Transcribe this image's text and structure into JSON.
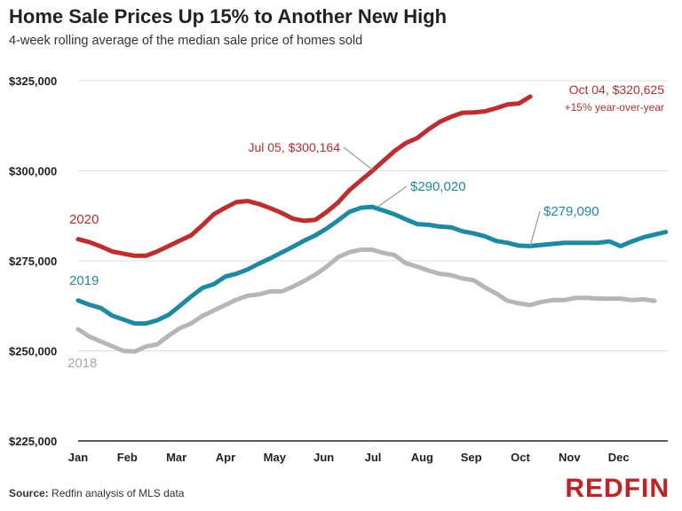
{
  "header": {
    "title": "Home Sale Prices Up 15% to Another New High",
    "subtitle": "4-week rolling average of the median sale price of homes sold"
  },
  "footer": {
    "source_label": "Source:",
    "source_text": "Redfin analysis of MLS data",
    "logo": "REDFIN"
  },
  "chart_data": {
    "type": "line",
    "title": "Home Sale Prices Up 15% to Another New High",
    "subtitle": "4-week rolling average of the median sale price of homes sold",
    "xlabel": "",
    "ylabel": "",
    "ylim": [
      225000,
      325000
    ],
    "xlim": [
      0,
      12
    ],
    "y_ticks": [
      225000,
      250000,
      275000,
      300000,
      325000
    ],
    "y_tick_labels": [
      "$225,000",
      "$250,000",
      "$275,000",
      "$300,000",
      "$325,000"
    ],
    "x_tick_labels": [
      "Jan",
      "Feb",
      "Mar",
      "Apr",
      "May",
      "Jun",
      "Jul",
      "Aug",
      "Sep",
      "Oct",
      "Nov",
      "Dec"
    ],
    "grid": true,
    "colors": {
      "2020": "#c42b2b",
      "2019": "#1a8aa5",
      "2018": "#b6b6b6",
      "grid": "#dddddd",
      "axis": "#222222",
      "callout": "#999999"
    },
    "series": [
      {
        "name": "2018",
        "color": "#b6b6b6",
        "x": [
          0.0,
          0.23,
          0.46,
          0.69,
          0.92,
          1.15,
          1.38,
          1.61,
          1.84,
          2.07,
          2.3,
          2.53,
          2.76,
          2.99,
          3.22,
          3.45,
          3.68,
          3.91,
          4.14,
          4.37,
          4.6,
          4.83,
          5.06,
          5.29,
          5.52,
          5.75,
          5.98,
          6.21,
          6.44,
          6.67,
          6.9,
          7.13,
          7.36,
          7.59,
          7.82,
          8.05,
          8.28,
          8.51,
          8.74,
          8.97,
          9.2,
          9.43,
          9.66,
          9.89,
          10.12,
          10.35,
          10.58,
          10.81,
          11.04,
          11.27,
          11.5,
          11.73
        ],
        "values": [
          256000,
          254000,
          252600,
          251300,
          250000,
          249800,
          251200,
          251800,
          254200,
          256300,
          257600,
          259700,
          261200,
          262700,
          264200,
          265300,
          265700,
          266500,
          266500,
          267800,
          269400,
          271200,
          273400,
          276000,
          277400,
          278100,
          278100,
          277200,
          276600,
          274300,
          273400,
          272300,
          271400,
          271000,
          270100,
          269600,
          267600,
          265900,
          263900,
          263200,
          262700,
          263600,
          264100,
          264100,
          264700,
          264700,
          264500,
          264500,
          264500,
          264100,
          264300,
          263900
        ]
      },
      {
        "name": "2019",
        "color": "#1a8aa5",
        "x": [
          0.0,
          0.23,
          0.46,
          0.69,
          0.92,
          1.15,
          1.38,
          1.61,
          1.84,
          2.07,
          2.3,
          2.53,
          2.76,
          2.99,
          3.22,
          3.45,
          3.68,
          3.91,
          4.14,
          4.37,
          4.6,
          4.83,
          5.06,
          5.29,
          5.52,
          5.75,
          5.98,
          6.21,
          6.44,
          6.67,
          6.9,
          7.13,
          7.36,
          7.59,
          7.82,
          8.05,
          8.28,
          8.51,
          8.74,
          8.97,
          9.2,
          9.43,
          9.66,
          9.89,
          10.12,
          10.35,
          10.58,
          10.81,
          11.04,
          11.27,
          11.5,
          11.73,
          11.96
        ],
        "values": [
          264000,
          262800,
          261900,
          259800,
          258700,
          257600,
          257600,
          258500,
          260000,
          262500,
          265100,
          267500,
          268500,
          270600,
          271400,
          272600,
          274200,
          275700,
          277300,
          278900,
          280600,
          282100,
          284000,
          286200,
          288600,
          289700,
          290000,
          289000,
          287900,
          286500,
          285200,
          285000,
          284500,
          284300,
          283200,
          282600,
          281800,
          280500,
          280000,
          279200,
          279100,
          279400,
          279700,
          280000,
          280000,
          280000,
          280000,
          280400,
          279100,
          280400,
          281500,
          282300,
          283000
        ]
      },
      {
        "name": "2020",
        "color": "#c42b2b",
        "x": [
          0.0,
          0.23,
          0.46,
          0.69,
          0.92,
          1.15,
          1.38,
          1.61,
          1.84,
          2.07,
          2.3,
          2.53,
          2.76,
          2.99,
          3.22,
          3.45,
          3.68,
          3.91,
          4.14,
          4.37,
          4.6,
          4.83,
          5.06,
          5.29,
          5.52,
          5.75,
          5.98,
          6.21,
          6.44,
          6.67,
          6.9,
          7.13,
          7.36,
          7.59,
          7.82,
          8.05,
          8.28,
          8.51,
          8.74,
          8.97,
          9.2
        ],
        "values": [
          281000,
          280200,
          279000,
          277600,
          277000,
          276400,
          276400,
          277600,
          279100,
          280600,
          282100,
          284900,
          287900,
          289700,
          291300,
          291600,
          290800,
          289600,
          288300,
          286700,
          286100,
          286400,
          288600,
          291200,
          294600,
          297300,
          299900,
          302700,
          305500,
          307700,
          309100,
          311500,
          313600,
          315000,
          316100,
          316200,
          316500,
          317400,
          318400,
          318700,
          320600
        ]
      }
    ],
    "annotations": [
      {
        "series": "2020",
        "text": "Jul 05, $300,164",
        "x": 6.0,
        "y": 300164,
        "style": "callout"
      },
      {
        "series": "2020",
        "text": "Oct 04, $320,625",
        "subtext": "+15% year-over-year",
        "x": 9.2,
        "y": 320625,
        "style": "label"
      },
      {
        "series": "2019",
        "text": "$290,020",
        "x": 6.1,
        "y": 290020,
        "style": "callout"
      },
      {
        "series": "2019",
        "text": "$279,090",
        "x": 9.2,
        "y": 279090,
        "style": "callout"
      },
      {
        "series": "2020",
        "text": "2020",
        "x": 0.0,
        "y": 281000,
        "style": "series-label"
      },
      {
        "series": "2019",
        "text": "2019",
        "x": 0.0,
        "y": 264000,
        "style": "series-label"
      },
      {
        "series": "2018",
        "text": "2018",
        "x": 0.0,
        "y": 256000,
        "style": "series-label"
      }
    ]
  }
}
